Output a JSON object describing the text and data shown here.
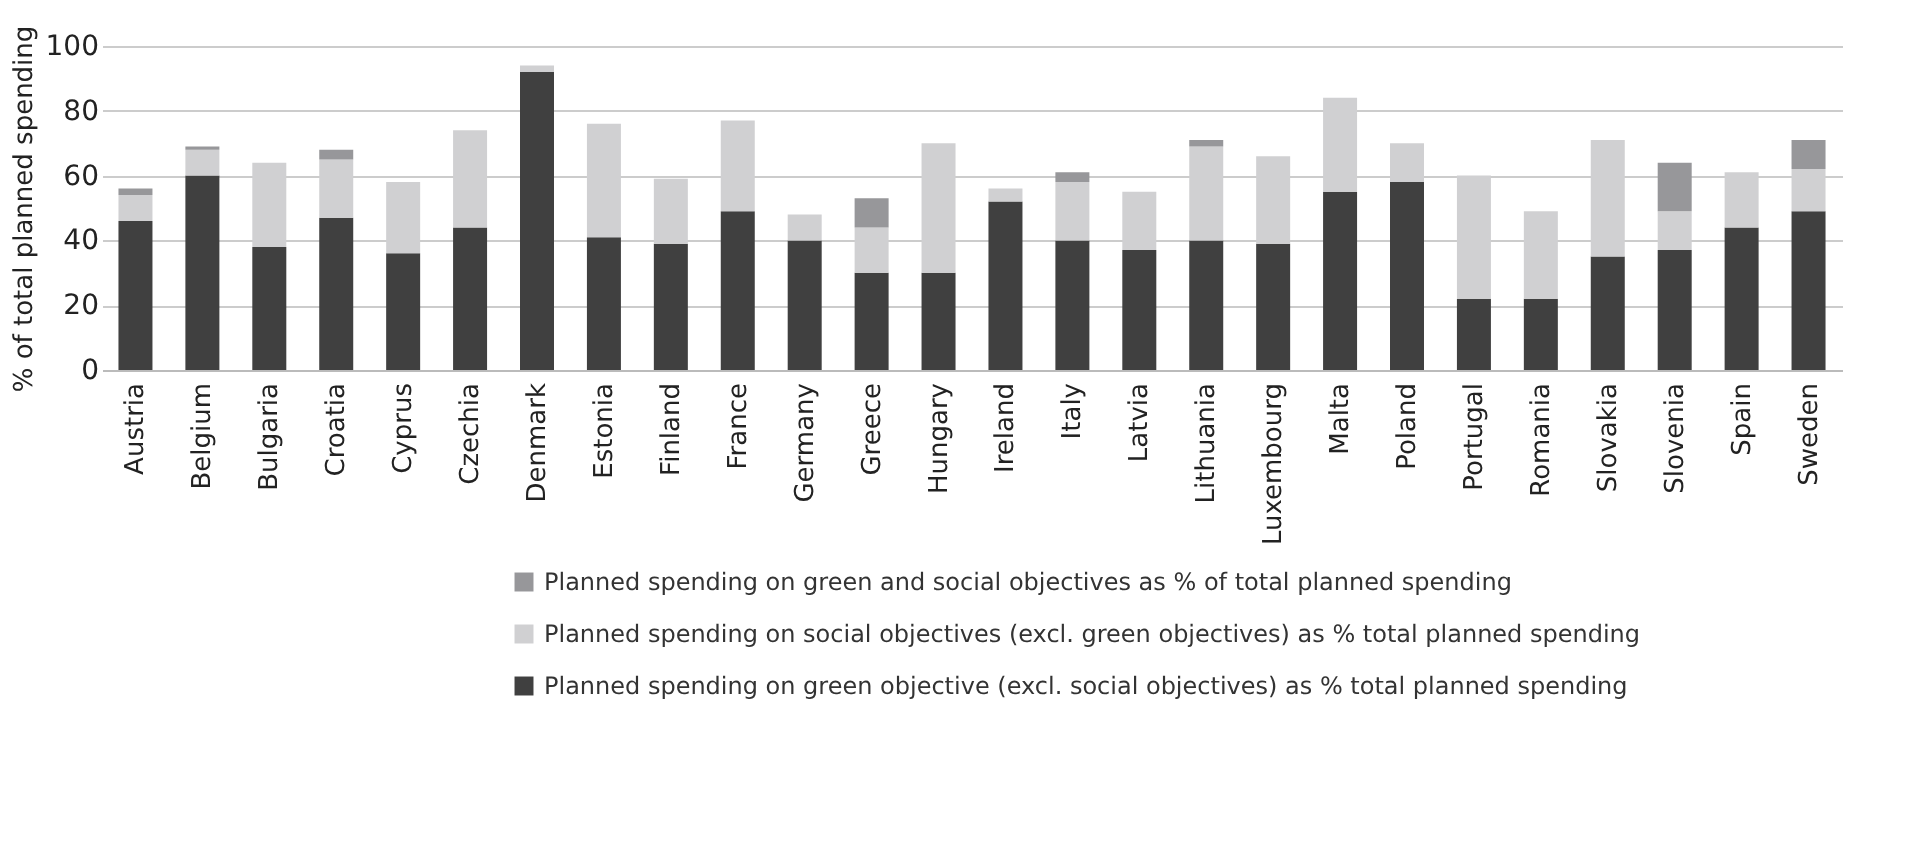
{
  "chart_data": {
    "type": "bar",
    "stacked": true,
    "ylabel": "% of total planned spending",
    "categories": [
      "Austria",
      "Belgium",
      "Bulgaria",
      "Croatia",
      "Cyprus",
      "Czechia",
      "Denmark",
      "Estonia",
      "Finland",
      "France",
      "Germany",
      "Greece",
      "Hungary",
      "Ireland",
      "Italy",
      "Latvia",
      "Lithuania",
      "Luxembourg",
      "Malta",
      "Poland",
      "Portugal",
      "Romania",
      "Slovakia",
      "Slovenia",
      "Spain",
      "Sweden"
    ],
    "series": [
      {
        "name": "Planned spending on green objective (excl. social objectives) as % total planned spending",
        "color": "#404040",
        "values": [
          46,
          60,
          38,
          47,
          36,
          44,
          92,
          41,
          39,
          49,
          40,
          30,
          30,
          52,
          40,
          37,
          40,
          39,
          55,
          58,
          22,
          22,
          35,
          37,
          44,
          49
        ]
      },
      {
        "name": "Planned spending on social objectives (excl. green objectives) as % total planned spending",
        "color": "#d0d0d2",
        "values": [
          8,
          8,
          26,
          18,
          22,
          30,
          2,
          35,
          20,
          28,
          8,
          14,
          40,
          4,
          18,
          18,
          29,
          27,
          29,
          12,
          38,
          27,
          36,
          12,
          17,
          13
        ]
      },
      {
        "name": "Planned spending on green and social objectives as % of total planned spending",
        "color": "#97979a",
        "values": [
          2,
          1,
          0,
          3,
          0,
          0,
          0,
          0,
          0,
          0,
          0,
          9,
          0,
          0,
          3,
          0,
          2,
          0,
          0,
          0,
          0,
          0,
          0,
          15,
          0,
          9
        ]
      }
    ],
    "ylim": [
      0,
      100
    ],
    "yticks": [
      0,
      20,
      40,
      60,
      80,
      100
    ],
    "grid": "y",
    "legend": "bottom"
  }
}
